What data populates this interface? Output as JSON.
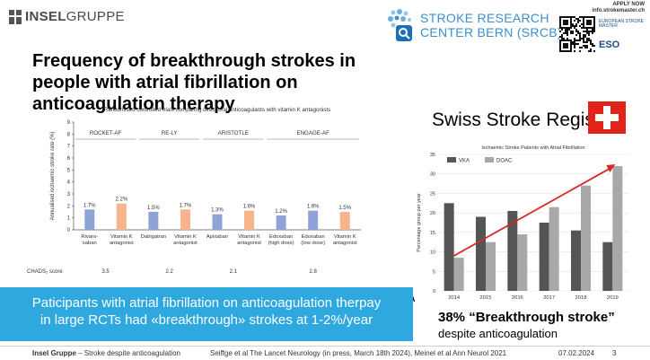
{
  "header": {
    "logo_brand_bold": "INSEL",
    "logo_brand_light": "GRUPPE",
    "srcb_line1": "STROKE RESEARCH",
    "srcb_line2": "CENTER BERN (SRCB)",
    "apply_line1": "APPLY NOW",
    "apply_line2": "info.strokemaster.ch",
    "esmo_text": "EUROPEAN STROKE MASTER",
    "eso_text": "ESO"
  },
  "slide": {
    "title": "Frequency of breakthrough strokes in people with atrial fibrillation on anticoagulation therapy",
    "banner_line1": "Paticipants with atrial fibrillation on anticoagulation therpay",
    "banner_line2": "in large RCTs had «breakthrough» strokes at 1-2%/year",
    "registry_title": "Swiss Stroke Registry",
    "breakthrough_title": "38% “Breakthrough stroke”",
    "breakthrough_sub": "despite anticoagulation"
  },
  "footer": {
    "org": "Insel Gruppe",
    "topic": " – Stroke despite anticoagulation",
    "citation": "Seiffge et al The Lancet Neurology (in press, March 18th 2024), Meinel et al Ann Neurol 2021",
    "date": "07.02.2024",
    "page": "3"
  },
  "chart_data": [
    {
      "type": "bar",
      "title": "Randomised controlled trials comparing direct oral anticoagulants with vitamin K antagonists",
      "ylabel": "Annualised ischaemic stroke rate (%)",
      "ylim": [
        0,
        9
      ],
      "yticks": [
        0,
        1,
        2,
        3,
        4,
        5,
        6,
        7,
        8,
        9
      ],
      "categories": [
        [
          "Rivaro-",
          "xaban"
        ],
        [
          "Vitamin K",
          "antagonist"
        ],
        [
          "Dabigatran"
        ],
        [
          "Vitamin K",
          "antagonist"
        ],
        [
          "Apixaban"
        ],
        [
          "Vitamin K",
          "antagonist"
        ],
        [
          "Edoxaban",
          "(high dose)"
        ],
        [
          "Edoxaban",
          "(low dose)"
        ],
        [
          "Vitamin K",
          "antagonist"
        ]
      ],
      "values": [
        1.7,
        2.2,
        1.5,
        1.7,
        1.3,
        1.6,
        1.2,
        1.6,
        1.5
      ],
      "value_labels": [
        "1.7%",
        "2.2%",
        "1.5%",
        "1.7%",
        "1.3%",
        "1.6%",
        "1.2%",
        "1.6%",
        "1.5%"
      ],
      "bar_kind": [
        "doac",
        "vka",
        "doac",
        "vka",
        "doac",
        "vka",
        "doac",
        "doac",
        "vka"
      ],
      "trials": [
        {
          "name": "ROCKET-AF",
          "start": 0,
          "end": 1,
          "chads": "3.5"
        },
        {
          "name": "RE-LY",
          "start": 2,
          "end": 3,
          "chads": "2.2"
        },
        {
          "name": "ARISTOTLE",
          "start": 4,
          "end": 5,
          "chads": "2.1"
        },
        {
          "name": "ENGAGE-AF",
          "start": 6,
          "end": 8,
          "chads": "2.8"
        }
      ],
      "chads_label": "CHADS₂ score",
      "colors": {
        "doac": "#8fa3d6",
        "vka": "#f6b38c"
      }
    },
    {
      "type": "bar",
      "title": "Ischaemic Stroke Patients with Atrial Fibrillation",
      "ylabel": "Percentage group per year",
      "panel_label": "A",
      "ylim": [
        0,
        35
      ],
      "yticks": [
        0,
        5,
        10,
        15,
        20,
        25,
        30,
        35
      ],
      "categories": [
        "2014",
        "2015",
        "2016",
        "2017",
        "2018",
        "2019"
      ],
      "series": [
        {
          "name": "VKA",
          "values": [
            22.5,
            19,
            20.5,
            17.5,
            15.5,
            12.5
          ],
          "color": "#555555"
        },
        {
          "name": "DOAC",
          "values": [
            8.5,
            12.5,
            14.5,
            21.5,
            27,
            32
          ],
          "color": "#a8a8a8"
        }
      ],
      "trend": {
        "from": [
          0,
          9
        ],
        "to": [
          5,
          32
        ],
        "color": "#d42a2a"
      }
    }
  ]
}
